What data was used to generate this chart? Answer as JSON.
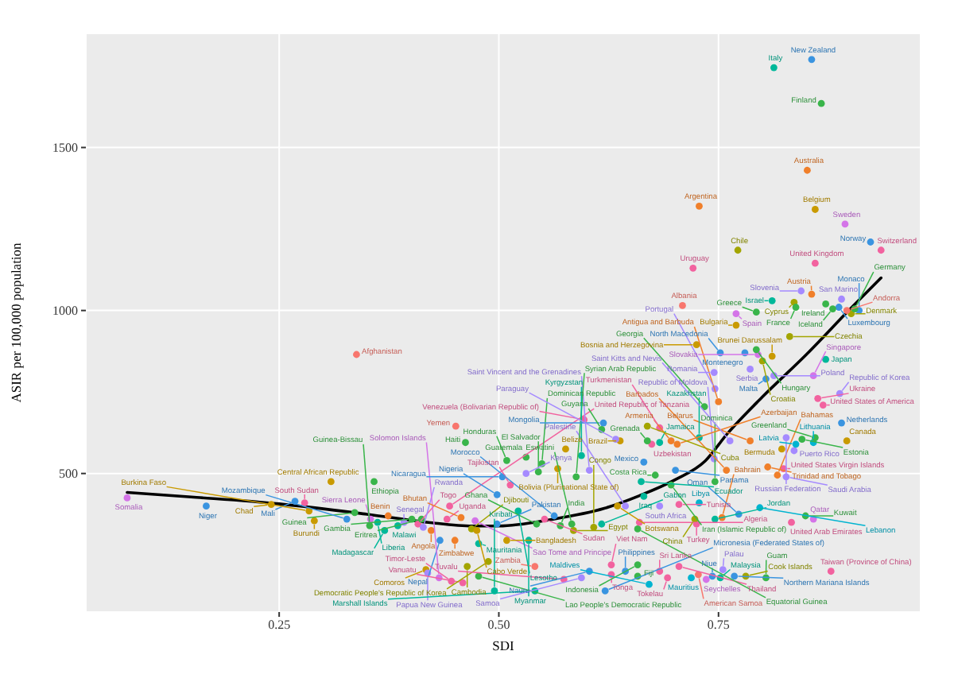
{
  "chart_data": {
    "type": "scatter",
    "xlabel": "SDI",
    "ylabel": "ASIR per 100,000 population",
    "xlim": [
      0.03,
      0.98
    ],
    "ylim": [
      75,
      1850
    ],
    "xticks": [
      {
        "value": 0.25,
        "label": "0.25"
      },
      {
        "value": 0.5,
        "label": "0.50"
      },
      {
        "value": 0.75,
        "label": "0.75"
      }
    ],
    "yticks": [
      500,
      1000,
      1500
    ],
    "grid": true,
    "series": [
      {
        "type": "scatter",
        "marker": "circle",
        "x": [
          0.077,
          0.167,
          0.268,
          0.309,
          0.279,
          0.241,
          0.284,
          0.336,
          0.374,
          0.401,
          0.29,
          0.327,
          0.354,
          0.353,
          0.362,
          0.385,
          0.37,
          0.392,
          0.408,
          0.414,
          0.423,
          0.433,
          0.417,
          0.419,
          0.432,
          0.446,
          0.459,
          0.464,
          0.412,
          0.469,
          0.358,
          0.444,
          0.441,
          0.457,
          0.475,
          0.473,
          0.462,
          0.451,
          0.531,
          0.549,
          0.545,
          0.603,
          0.504,
          0.513,
          0.45,
          0.338,
          0.498,
          0.534,
          0.509,
          0.477,
          0.477,
          0.488,
          0.495,
          0.541,
          0.621,
          0.541,
          0.574,
          0.594,
          0.603,
          0.628,
          0.671,
          0.658,
          0.644,
          0.683,
          0.692,
          0.719,
          0.736,
          0.743,
          0.752,
          0.804,
          0.781,
          0.768,
          0.878,
          0.755,
          0.727,
          0.658,
          0.628,
          0.608,
          0.705,
          0.585,
          0.57,
          0.658,
          0.66,
          0.746,
          0.833,
          0.725,
          0.754,
          0.858,
          0.849,
          0.773,
          0.723,
          0.683,
          0.617,
          0.543,
          0.522,
          0.498,
          0.635,
          0.552,
          0.583,
          0.563,
          0.797,
          0.746,
          0.728,
          0.705,
          0.644,
          0.665,
          0.531,
          0.509,
          0.567,
          0.588,
          0.696,
          0.678,
          0.662,
          0.701,
          0.665,
          0.674,
          0.594,
          0.745,
          0.759,
          0.827,
          0.824,
          0.817,
          0.806,
          0.822,
          0.836,
          0.858,
          0.896,
          0.86,
          0.786,
          0.728,
          0.703,
          0.827,
          0.763,
          0.638,
          0.683,
          0.696,
          0.669,
          0.619,
          0.617,
          0.576,
          0.597,
          0.845,
          0.89,
          0.838,
          0.869,
          0.863,
          0.75,
          0.633,
          0.683,
          0.669,
          0.746,
          0.734,
          0.888,
          0.858,
          0.804,
          0.786,
          0.745,
          0.872,
          0.813,
          0.8,
          0.811,
          0.795,
          0.752,
          0.78,
          0.725,
          0.831,
          0.793,
          0.77,
          0.77,
          0.901,
          0.91,
          0.896,
          0.709,
          0.836,
          0.793,
          0.905,
          0.887,
          0.872,
          0.88,
          0.838,
          0.811,
          0.89,
          0.856,
          0.844,
          0.721,
          0.86,
          0.935,
          0.772,
          0.923,
          0.894,
          0.86,
          0.728,
          0.851,
          0.867,
          0.813,
          0.856
        ],
        "values": [
          425,
          400,
          415,
          475,
          410,
          405,
          385,
          380,
          370,
          360,
          355,
          360,
          360,
          340,
          350,
          340,
          325,
          350,
          345,
          335,
          325,
          295,
          205,
          195,
          180,
          170,
          165,
          215,
          360,
          330,
          475,
          400,
          360,
          365,
          325,
          355,
          595,
          645,
          550,
          530,
          505,
          510,
          490,
          465,
          295,
          865,
          345,
          295,
          295,
          285,
          185,
          230,
          140,
          140,
          140,
          215,
          175,
          180,
          200,
          190,
          160,
          185,
          200,
          200,
          180,
          180,
          175,
          185,
          180,
          180,
          185,
          185,
          200,
          205,
          190,
          220,
          220,
          335,
          215,
          325,
          340,
          330,
          350,
          360,
          350,
          345,
          365,
          360,
          370,
          375,
          360,
          400,
          345,
          345,
          385,
          435,
          400,
          360,
          345,
          370,
          395,
          475,
          410,
          405,
          400,
          430,
          500,
          540,
          515,
          490,
          465,
          495,
          475,
          510,
          535,
          590,
          555,
          545,
          510,
          490,
          515,
          495,
          520,
          575,
          570,
          595,
          600,
          610,
          600,
          610,
          590,
          610,
          600,
          600,
          595,
          600,
          600,
          655,
          635,
          575,
          665,
          605,
          655,
          590,
          710,
          730,
          720,
          605,
          640,
          645,
          760,
          705,
          745,
          800,
          790,
          820,
          810,
          850,
          800,
          845,
          860,
          865,
          870,
          870,
          895,
          920,
          880,
          955,
          990,
          990,
          1000,
          1000,
          1015,
          1025,
          995,
          1005,
          1010,
          1020,
          1005,
          1010,
          1030,
          1035,
          1050,
          1060,
          1130,
          1145,
          1185,
          1185,
          1210,
          1265,
          1310,
          1320,
          1430,
          1635,
          1745,
          1770
        ],
        "colors": [
          "#d474e8",
          "#3a94e0",
          "#3a94e0",
          "#c99a00",
          "#f2629f",
          "#c99a00",
          "#c99a00",
          "#39b54a",
          "#f07f2a",
          "#39b54a",
          "#c99a00",
          "#3a94e0",
          "#d474e8",
          "#39b54a",
          "#00b89a",
          "#00b89a",
          "#00b89a",
          "#a58aff",
          "#f2629f",
          "#a58aff",
          "#f07f2a",
          "#3a94e0",
          "#c99a00",
          "#a58aff",
          "#d474e8",
          "#f2629f",
          "#f2629f",
          "#a3a500",
          "#39b54a",
          "#a3a500",
          "#39b54a",
          "#f2629f",
          "#f2629f",
          "#f07f2a",
          "#c99a00",
          "#d474e8",
          "#39b54a",
          "#f8766d",
          "#39b54a",
          "#39b54a",
          "#39b54a",
          "#a58aff",
          "#3a94e0",
          "#f2629f",
          "#f07f2a",
          "#f8766d",
          "#3a94e0",
          "#00b89a",
          "#c99a00",
          "#00b89a",
          "#39b54a",
          "#a3a500",
          "#00b89a",
          "#00b89a",
          "#3a94e0",
          "#f8766d",
          "#f2629f",
          "#a58aff",
          "#3a94e0",
          "#f2629f",
          "#00b4d0",
          "#39b54a",
          "#3a94e0",
          "#f2629f",
          "#f2629f",
          "#00b4d0",
          "#d474e8",
          "#3a94e0",
          "#00b89a",
          "#39b54a",
          "#a3a500",
          "#3a94e0",
          "#f2629f",
          "#a58aff",
          "#f8766d",
          "#39b54a",
          "#f2629f",
          "#a3a500",
          "#f2629f",
          "#a3a500",
          "#39b54a",
          "#39b54a",
          "#f2629f",
          "#00b89a",
          "#f2629f",
          "#f2629f",
          "#f07f2a",
          "#d474e8",
          "#39b54a",
          "#3a94e0",
          "#a3a500",
          "#a58aff",
          "#00b89a",
          "#39b54a",
          "#00b89a",
          "#3a94e0",
          "#c99a00",
          "#f2629f",
          "#39b54a",
          "#3a94e0",
          "#00b4d0",
          "#39b54a",
          "#00b4d0",
          "#f2629f",
          "#a58aff",
          "#00b89a",
          "#a58aff",
          "#39b54a",
          "#c99a00",
          "#39b54a",
          "#39b54a",
          "#39b54a",
          "#00b89a",
          "#3a94e0",
          "#3a94e0",
          "#f2629f",
          "#00b89a",
          "#a58aff",
          "#f07f2a",
          "#a58aff",
          "#f2629f",
          "#f07f2a",
          "#f07f2a",
          "#c99a00",
          "#a58aff",
          "#00b4d0",
          "#c99a00",
          "#39b54a",
          "#f07f2a",
          "#00b89a",
          "#f07f2a",
          "#a58aff",
          "#a58aff",
          "#c99a00",
          "#00b89a",
          "#f07f2a",
          "#39b54a",
          "#3a94e0",
          "#39b54a",
          "#c99a00",
          "#f2629f",
          "#39b54a",
          "#3a94e0",
          "#00b4d0",
          "#f2629f",
          "#f2629f",
          "#f07f2a",
          "#a58aff",
          "#f2629f",
          "#a3a500",
          "#a58aff",
          "#39b54a",
          "#a58aff",
          "#d474e8",
          "#3a94e0",
          "#a58aff",
          "#a58aff",
          "#00b89a",
          "#a58aff",
          "#a3a500",
          "#c99a00",
          "#d474e8",
          "#3a94e0",
          "#3a94e0",
          "#c99a00",
          "#a3a500",
          "#39b54a",
          "#c99a00",
          "#d474e8",
          "#a3a500",
          "#3a94e0",
          "#f8766d",
          "#f8766d",
          "#a3a500",
          "#39b54a",
          "#39b54a",
          "#3a94e0",
          "#39b54a",
          "#39b54a",
          "#39b54a",
          "#00b89a",
          "#a58aff",
          "#f07f2a",
          "#a58aff",
          "#f2629f",
          "#f2629f",
          "#f2629f",
          "#a3a500",
          "#3a94e0",
          "#d474e8",
          "#c99a00",
          "#f07f2a",
          "#f07f2a",
          "#39b54a",
          "#00b89a",
          "#3a94e0"
        ]
      },
      {
        "type": "line",
        "color": "#000000",
        "line_style": "solid",
        "x": [
          0.077,
          0.15,
          0.25,
          0.35,
          0.42,
          0.47,
          0.5,
          0.56,
          0.62,
          0.66,
          0.7,
          0.735,
          0.76,
          0.8,
          0.85,
          0.9,
          0.935
        ],
        "values": [
          442,
          428,
          407,
          375,
          350,
          339,
          339,
          359,
          393,
          432,
          480,
          539,
          622,
          735,
          865,
          1005,
          1100
        ]
      }
    ],
    "annotations": [
      {
        "text": "Somalia",
        "x": 0.077,
        "y": 425
      },
      {
        "text": "Niger",
        "x": 0.167,
        "y": 400
      },
      {
        "text": "Mali",
        "x": 0.268,
        "y": 415
      },
      {
        "text": "Central African Republic",
        "x": 0.309,
        "y": 475
      },
      {
        "text": "South Sudan",
        "x": 0.279,
        "y": 410
      },
      {
        "text": "Chad",
        "x": 0.241,
        "y": 405
      },
      {
        "text": "Burkina Faso",
        "x": 0.284,
        "y": 385
      },
      {
        "text": "Guinea",
        "x": 0.336,
        "y": 380
      },
      {
        "text": "Benin",
        "x": 0.374,
        "y": 370
      },
      {
        "text": "Gambia",
        "x": 0.401,
        "y": 360
      },
      {
        "text": "Burundi",
        "x": 0.29,
        "y": 355
      },
      {
        "text": "Mozambique",
        "x": 0.327,
        "y": 360
      },
      {
        "text": "Sierra Leone",
        "x": 0.354,
        "y": 360
      },
      {
        "text": "Guinea-Bissau",
        "x": 0.353,
        "y": 340
      },
      {
        "text": "Liberia",
        "x": 0.362,
        "y": 350
      },
      {
        "text": "Malawi",
        "x": 0.385,
        "y": 340
      },
      {
        "text": "Madagascar",
        "x": 0.37,
        "y": 325
      },
      {
        "text": "Senegal",
        "x": 0.392,
        "y": 350
      },
      {
        "text": "Togo",
        "x": 0.408,
        "y": 345
      },
      {
        "text": "Rwanda",
        "x": 0.414,
        "y": 335
      },
      {
        "text": "Angola",
        "x": 0.423,
        "y": 325
      },
      {
        "text": "Nepal",
        "x": 0.433,
        "y": 295
      },
      {
        "text": "Comoros",
        "x": 0.417,
        "y": 205
      },
      {
        "text": "Papua New Guinea",
        "x": 0.419,
        "y": 195
      },
      {
        "text": "Solomon Islands",
        "x": 0.432,
        "y": 180
      },
      {
        "text": "Timor-Leste",
        "x": 0.446,
        "y": 170
      },
      {
        "text": "Vanuatu",
        "x": 0.459,
        "y": 165
      },
      {
        "text": "Cambodia",
        "x": 0.464,
        "y": 215
      },
      {
        "text": "Eritrea",
        "x": 0.412,
        "y": 360
      },
      {
        "text": "Djibouti",
        "x": 0.469,
        "y": 330
      },
      {
        "text": "Ethiopia",
        "x": 0.358,
        "y": 475
      },
      {
        "text": "United Republic of Tanzania",
        "x": 0.444,
        "y": 400
      },
      {
        "text": "Uganda",
        "x": 0.441,
        "y": 360
      },
      {
        "text": "Bhutan",
        "x": 0.457,
        "y": 365
      },
      {
        "text": "Cabo Verde",
        "x": 0.475,
        "y": 325
      },
      {
        "text": "Sao Tome and Principe",
        "x": 0.473,
        "y": 355
      },
      {
        "text": "Haiti",
        "x": 0.462,
        "y": 595
      },
      {
        "text": "Yemen",
        "x": 0.451,
        "y": 645
      },
      {
        "text": "Guatemala",
        "x": 0.531,
        "y": 550
      },
      {
        "text": "Dominican Republic",
        "x": 0.549,
        "y": 530
      },
      {
        "text": "El Salvador",
        "x": 0.545,
        "y": 505
      },
      {
        "text": "Saint Vincent and the Grenadines",
        "x": 0.603,
        "y": 510
      },
      {
        "text": "Nicaragua",
        "x": 0.504,
        "y": 490
      },
      {
        "text": "Tajikistan",
        "x": 0.513,
        "y": 465
      },
      {
        "text": "Zimbabwe",
        "x": 0.45,
        "y": 295
      },
      {
        "text": "Afghanistan",
        "x": 0.338,
        "y": 865
      },
      {
        "text": "Pakistan",
        "x": 0.498,
        "y": 345
      },
      {
        "text": "Myanmar",
        "x": 0.534,
        "y": 295
      },
      {
        "text": "Bangladesh",
        "x": 0.509,
        "y": 295
      },
      {
        "text": "Mauritania",
        "x": 0.477,
        "y": 285
      },
      {
        "text": "Lao People's Democratic Republic",
        "x": 0.477,
        "y": 185
      },
      {
        "text": "Democratic People's Republic of Korea",
        "x": 0.488,
        "y": 230
      },
      {
        "text": "Kiribati",
        "x": 0.495,
        "y": 140
      },
      {
        "text": "Marshall Islands",
        "x": 0.541,
        "y": 140
      },
      {
        "text": "Micronesia (Federated States of)",
        "x": 0.621,
        "y": 140
      },
      {
        "text": "Zambia",
        "x": 0.541,
        "y": 215
      },
      {
        "text": "Tuvalu",
        "x": 0.574,
        "y": 175
      },
      {
        "text": "Samoa",
        "x": 0.594,
        "y": 180
      },
      {
        "text": "Nauru",
        "x": 0.603,
        "y": 200
      },
      {
        "text": "Tonga",
        "x": 0.628,
        "y": 190
      },
      {
        "text": "Maldives",
        "x": 0.671,
        "y": 160
      },
      {
        "text": "Fiji",
        "x": 0.658,
        "y": 185
      },
      {
        "text": "Philippines",
        "x": 0.644,
        "y": 200
      },
      {
        "text": "Sri Lanka",
        "x": 0.683,
        "y": 200
      },
      {
        "text": "Tokelau",
        "x": 0.692,
        "y": 180
      },
      {
        "text": "Mauritius",
        "x": 0.719,
        "y": 180
      },
      {
        "text": "Seychelles",
        "x": 0.736,
        "y": 175
      },
      {
        "text": "Niue",
        "x": 0.743,
        "y": 185
      },
      {
        "text": "Malaysia",
        "x": 0.752,
        "y": 180
      },
      {
        "text": "Guam",
        "x": 0.804,
        "y": 180
      },
      {
        "text": "Cook Islands",
        "x": 0.781,
        "y": 185
      },
      {
        "text": "Northern Mariana Islands",
        "x": 0.768,
        "y": 185
      },
      {
        "text": "Taiwan (Province of China)",
        "x": 0.878,
        "y": 200
      },
      {
        "text": "Palau",
        "x": 0.755,
        "y": 205
      },
      {
        "text": "American Samoa",
        "x": 0.727,
        "y": 190
      },
      {
        "text": "Indonesia",
        "x": 0.658,
        "y": 220
      },
      {
        "text": "Viet Nam",
        "x": 0.628,
        "y": 220
      },
      {
        "text": "Congo",
        "x": 0.608,
        "y": 335
      },
      {
        "text": "Thailand",
        "x": 0.705,
        "y": 215
      },
      {
        "text": "Egypt",
        "x": 0.585,
        "y": 325
      },
      {
        "text": "India",
        "x": 0.57,
        "y": 340
      },
      {
        "text": "Equatorial Guinea",
        "x": 0.658,
        "y": 330
      },
      {
        "text": "Algeria",
        "x": 0.66,
        "y": 350
      },
      {
        "text": "Jordan",
        "x": 0.746,
        "y": 360
      },
      {
        "text": "United Arab Emirates",
        "x": 0.833,
        "y": 350
      },
      {
        "text": "Turkey",
        "x": 0.725,
        "y": 345
      },
      {
        "text": "Bahrain",
        "x": 0.754,
        "y": 365
      },
      {
        "text": "Qatar",
        "x": 0.858,
        "y": 360
      },
      {
        "text": "Kuwait",
        "x": 0.849,
        "y": 370
      },
      {
        "text": "Oman",
        "x": 0.773,
        "y": 375
      },
      {
        "text": "China",
        "x": 0.723,
        "y": 360
      },
      {
        "text": "South Africa",
        "x": 0.683,
        "y": 400
      },
      {
        "text": "Gabon",
        "x": 0.617,
        "y": 345
      },
      {
        "text": "Ghana",
        "x": 0.543,
        "y": 345
      },
      {
        "text": "Lesotho",
        "x": 0.522,
        "y": 385
      },
      {
        "text": "Nigeria",
        "x": 0.498,
        "y": 435
      },
      {
        "text": "Botswana",
        "x": 0.635,
        "y": 400
      },
      {
        "text": "Sudan",
        "x": 0.552,
        "y": 360
      },
      {
        "text": "Eswatini",
        "x": 0.583,
        "y": 345
      },
      {
        "text": "Morocco",
        "x": 0.563,
        "y": 370
      },
      {
        "text": "Lebanon",
        "x": 0.797,
        "y": 395
      },
      {
        "text": "Dominica",
        "x": 0.746,
        "y": 475
      },
      {
        "text": "Libya",
        "x": 0.728,
        "y": 410
      },
      {
        "text": "Tunisia",
        "x": 0.705,
        "y": 405
      },
      {
        "text": "Palestine",
        "x": 0.644,
        "y": 400
      },
      {
        "text": "Iraq",
        "x": 0.665,
        "y": 430
      },
      {
        "text": "Kenya",
        "x": 0.531,
        "y": 500
      },
      {
        "text": "Honduras",
        "x": 0.509,
        "y": 540
      },
      {
        "text": "Bolivia (Plurinational State of)",
        "x": 0.567,
        "y": 515
      },
      {
        "text": "Syrian Arab Republic",
        "x": 0.588,
        "y": 490
      },
      {
        "text": "Iran (Islamic Republic of)",
        "x": 0.696,
        "y": 465
      },
      {
        "text": "Costa Rica",
        "x": 0.678,
        "y": 495
      },
      {
        "text": "Ecuador",
        "x": 0.662,
        "y": 475
      },
      {
        "text": "Panama",
        "x": 0.701,
        "y": 510
      },
      {
        "text": "Mexico",
        "x": 0.665,
        "y": 535
      },
      {
        "text": "Uzbekistan",
        "x": 0.674,
        "y": 590
      },
      {
        "text": "Kyrgyzstan",
        "x": 0.594,
        "y": 555
      },
      {
        "text": "Republic of Moldova",
        "x": 0.745,
        "y": 545
      },
      {
        "text": "Barbados",
        "x": 0.759,
        "y": 510
      },
      {
        "text": "Saudi Arabia",
        "x": 0.827,
        "y": 490
      },
      {
        "text": "United States Virgin Islands",
        "x": 0.824,
        "y": 515
      },
      {
        "text": "Bahamas",
        "x": 0.817,
        "y": 495
      },
      {
        "text": "Trinidad and Tobago",
        "x": 0.806,
        "y": 520
      },
      {
        "text": "Bermuda",
        "x": 0.822,
        "y": 575
      },
      {
        "text": "Puerto Rico",
        "x": 0.836,
        "y": 570
      },
      {
        "text": "Lithuania",
        "x": 0.858,
        "y": 595
      },
      {
        "text": "Canada",
        "x": 0.896,
        "y": 600
      },
      {
        "text": "Greenland",
        "x": 0.86,
        "y": 610
      },
      {
        "text": "Belarus",
        "x": 0.786,
        "y": 600
      },
      {
        "text": "Kazakhstan",
        "x": 0.728,
        "y": 610
      },
      {
        "text": "Azerbaijan",
        "x": 0.703,
        "y": 590
      },
      {
        "text": "Russian Federation",
        "x": 0.827,
        "y": 610
      },
      {
        "text": "Saint Kitts and Nevis",
        "x": 0.763,
        "y": 600
      },
      {
        "text": "Brazil",
        "x": 0.638,
        "y": 600
      },
      {
        "text": "Jamaica",
        "x": 0.683,
        "y": 595
      },
      {
        "text": "Armenia",
        "x": 0.696,
        "y": 600
      },
      {
        "text": "Grenada",
        "x": 0.669,
        "y": 600
      },
      {
        "text": "Mongolia",
        "x": 0.619,
        "y": 655
      },
      {
        "text": "Guyana",
        "x": 0.617,
        "y": 635
      },
      {
        "text": "Belize",
        "x": 0.576,
        "y": 575
      },
      {
        "text": "Venezuela (Bolivarian Republic of)",
        "x": 0.597,
        "y": 665
      },
      {
        "text": "Estonia",
        "x": 0.845,
        "y": 605
      },
      {
        "text": "Netherlands",
        "x": 0.89,
        "y": 655
      },
      {
        "text": "Latvia",
        "x": 0.838,
        "y": 590
      },
      {
        "text": "United States of America",
        "x": 0.869,
        "y": 710
      },
      {
        "text": "Ukraine",
        "x": 0.863,
        "y": 730
      },
      {
        "text": "Antigua and Barbuda",
        "x": 0.75,
        "y": 720
      },
      {
        "text": "Paraguay",
        "x": 0.633,
        "y": 605
      },
      {
        "text": "Turkmenistan",
        "x": 0.683,
        "y": 640
      },
      {
        "text": "Cuba",
        "x": 0.669,
        "y": 645
      },
      {
        "text": "Portugal",
        "x": 0.746,
        "y": 760
      },
      {
        "text": "Georgia",
        "x": 0.734,
        "y": 705
      },
      {
        "text": "Republic of Korea",
        "x": 0.888,
        "y": 745
      },
      {
        "text": "Singapore",
        "x": 0.858,
        "y": 800
      },
      {
        "text": "Malta",
        "x": 0.804,
        "y": 790
      },
      {
        "text": "Serbia",
        "x": 0.786,
        "y": 820
      },
      {
        "text": "Romania",
        "x": 0.745,
        "y": 810
      },
      {
        "text": "Japan",
        "x": 0.872,
        "y": 850
      },
      {
        "text": "Poland",
        "x": 0.813,
        "y": 800
      },
      {
        "text": "Croatia",
        "x": 0.8,
        "y": 845
      },
      {
        "text": "Brunei Darussalam",
        "x": 0.811,
        "y": 860
      },
      {
        "text": "Slovakia",
        "x": 0.795,
        "y": 865
      },
      {
        "text": "North Macedonia",
        "x": 0.752,
        "y": 870
      },
      {
        "text": "Montenegro",
        "x": 0.78,
        "y": 870
      },
      {
        "text": "Bosnia and Herzegovina",
        "x": 0.725,
        "y": 895
      },
      {
        "text": "Czechia",
        "x": 0.831,
        "y": 920
      },
      {
        "text": "Hungary",
        "x": 0.793,
        "y": 880
      },
      {
        "text": "Bulgaria",
        "x": 0.77,
        "y": 955
      },
      {
        "text": "Spain",
        "x": 0.77,
        "y": 990
      },
      {
        "text": "Denmark",
        "x": 0.901,
        "y": 990
      },
      {
        "text": "Monaco",
        "x": 0.91,
        "y": 1000
      },
      {
        "text": "Andorra",
        "x": 0.896,
        "y": 1000
      },
      {
        "text": "Albania",
        "x": 0.709,
        "y": 1015
      },
      {
        "text": "Cyprus",
        "x": 0.836,
        "y": 1025
      },
      {
        "text": "Greece",
        "x": 0.793,
        "y": 995
      },
      {
        "text": "Germany",
        "x": 0.905,
        "y": 1005
      },
      {
        "text": "Luxembourg",
        "x": 0.887,
        "y": 1010
      },
      {
        "text": "Ireland",
        "x": 0.872,
        "y": 1020
      },
      {
        "text": "Iceland",
        "x": 0.88,
        "y": 1005
      },
      {
        "text": "France",
        "x": 0.838,
        "y": 1010
      },
      {
        "text": "Israel",
        "x": 0.811,
        "y": 1030
      },
      {
        "text": "San Marino",
        "x": 0.89,
        "y": 1035
      },
      {
        "text": "Austria",
        "x": 0.856,
        "y": 1050
      },
      {
        "text": "Slovenia",
        "x": 0.844,
        "y": 1060
      },
      {
        "text": "Uruguay",
        "x": 0.721,
        "y": 1130
      },
      {
        "text": "United Kingdom",
        "x": 0.86,
        "y": 1145
      },
      {
        "text": "Switzerland",
        "x": 0.935,
        "y": 1185
      },
      {
        "text": "Chile",
        "x": 0.772,
        "y": 1185
      },
      {
        "text": "Norway",
        "x": 0.923,
        "y": 1210
      },
      {
        "text": "Sweden",
        "x": 0.894,
        "y": 1265
      },
      {
        "text": "Belgium",
        "x": 0.86,
        "y": 1310
      },
      {
        "text": "Argentina",
        "x": 0.728,
        "y": 1320
      },
      {
        "text": "Australia",
        "x": 0.851,
        "y": 1430
      },
      {
        "text": "Finland",
        "x": 0.867,
        "y": 1635
      },
      {
        "text": "Italy",
        "x": 0.813,
        "y": 1745
      },
      {
        "text": "New Zealand",
        "x": 0.856,
        "y": 1770
      }
    ]
  }
}
